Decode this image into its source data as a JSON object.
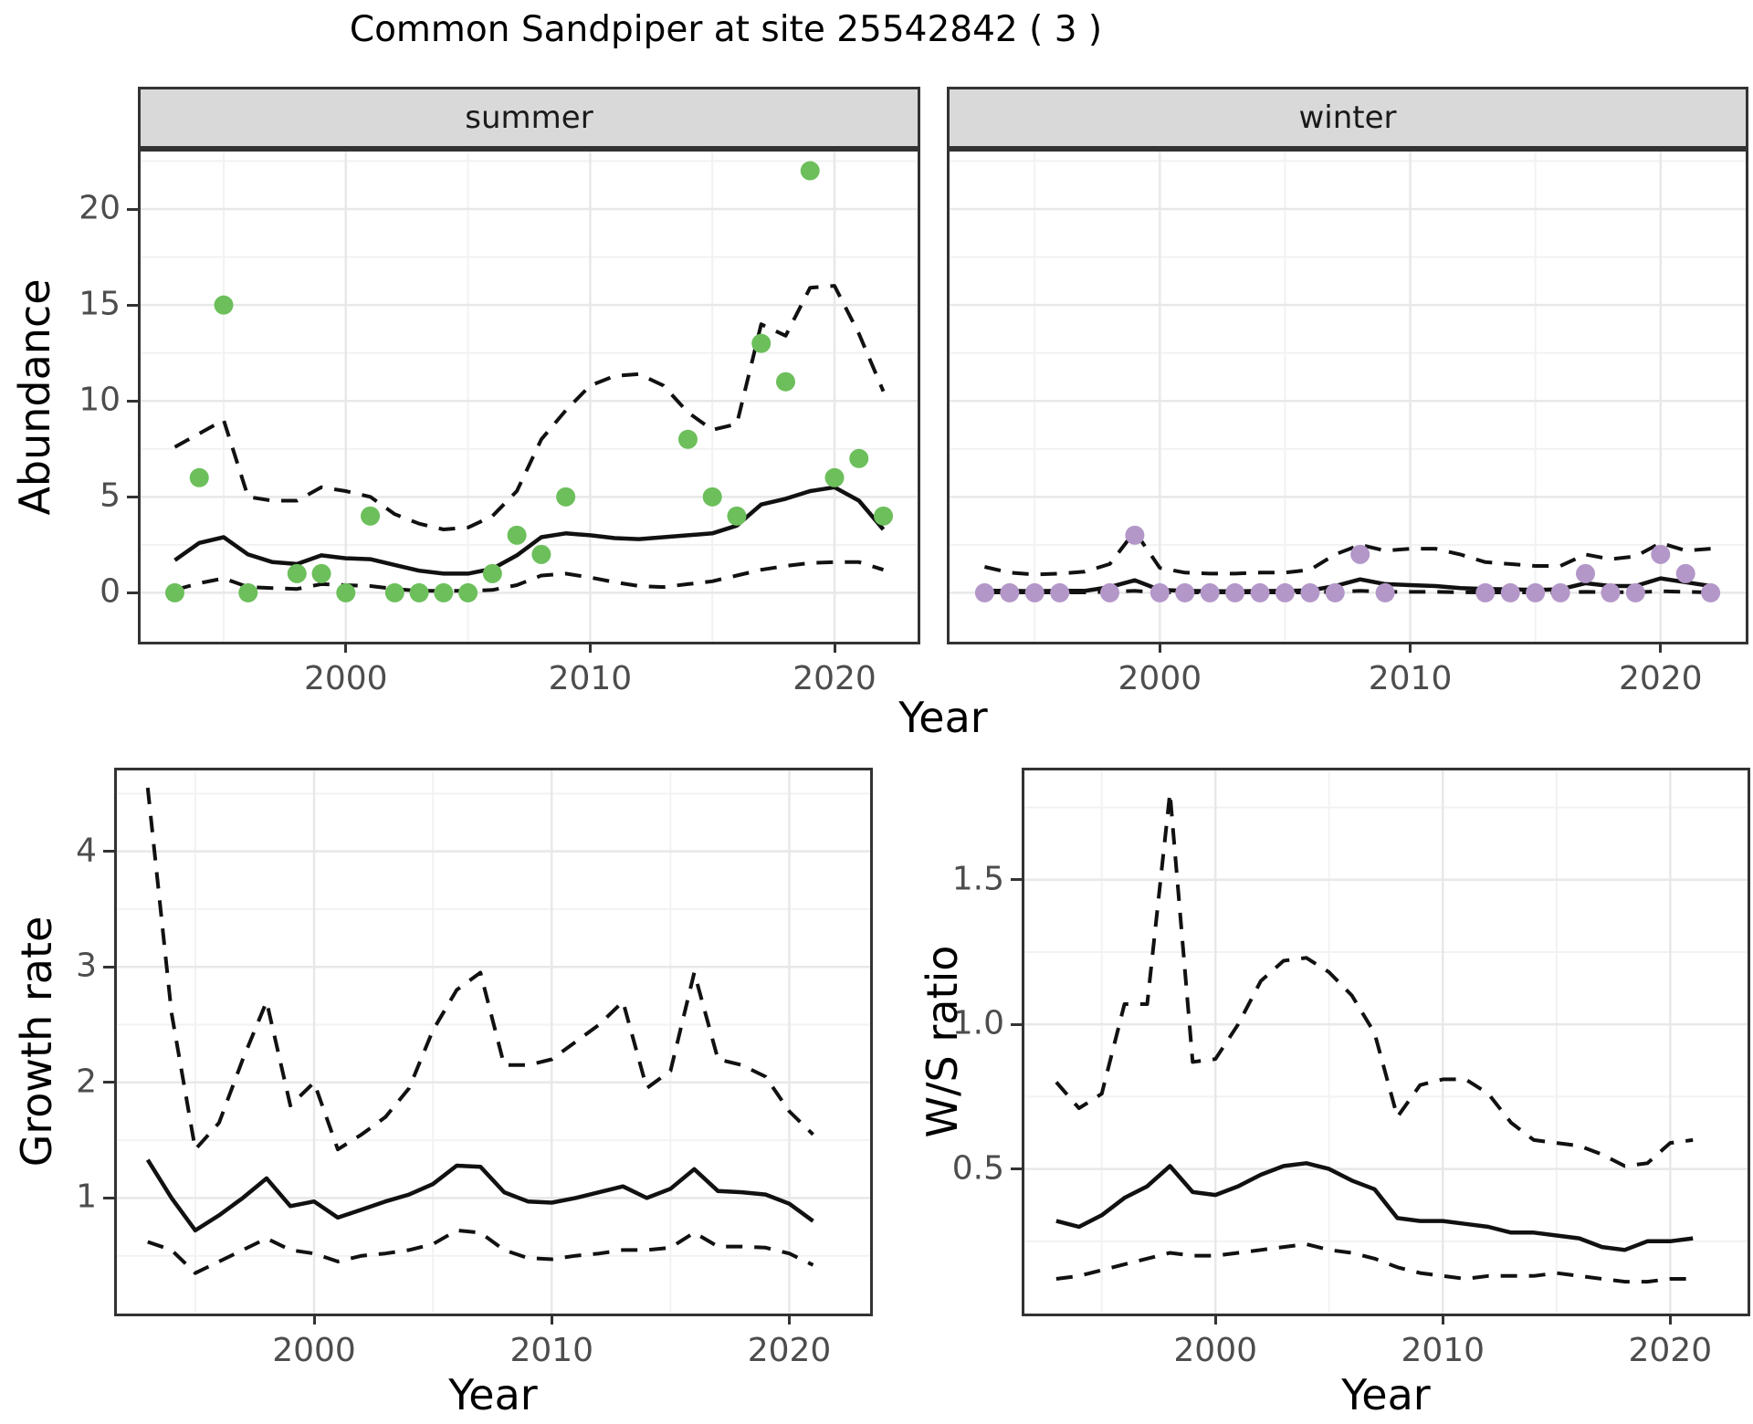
{
  "title": "Common Sandpiper at site 25542842 ( 3 )",
  "axis_titles": {
    "abundance": "Abundance",
    "year_top": "Year",
    "growth": "Growth rate",
    "year_growth": "Year",
    "ws": "W/S ratio",
    "year_ws": "Year"
  },
  "facets": {
    "summer": "summer",
    "winter": "winter"
  },
  "colors": {
    "summer_point": "#6CBF5B",
    "winter_point": "#B497C9",
    "line": "#111111",
    "strip_fill": "#D9D9D9",
    "border": "#333333",
    "grid_major": "#E8E8E8",
    "grid_minor": "#F2F2F2",
    "tick_text": "#4D4D4D"
  },
  "chart_data": {
    "abundance_summer": {
      "type": "scatter",
      "facet": "summer",
      "xlabel": "Year",
      "ylabel": "Abundance",
      "xlim": [
        1991.6,
        2023.4
      ],
      "ylim": [
        -2.55,
        23.0
      ],
      "x_ticks": [
        2000,
        2010,
        2020
      ],
      "x_tick_labels": [
        "2000",
        "2010",
        "2020"
      ],
      "x_minor": [
        1995,
        2005,
        2015
      ],
      "y_ticks": [
        0,
        5,
        10,
        15,
        20
      ],
      "y_tick_labels": [
        "0",
        "5",
        "10",
        "15",
        "20"
      ],
      "y_minor": [
        2.5,
        7.5,
        12.5,
        17.5,
        22.5
      ],
      "show_y_tick_labels": true,
      "point_color": "summer_point",
      "years": [
        1993,
        1994,
        1995,
        1996,
        1997,
        1998,
        1999,
        2000,
        2001,
        2002,
        2003,
        2004,
        2005,
        2006,
        2007,
        2008,
        2009,
        2010,
        2011,
        2012,
        2013,
        2014,
        2015,
        2016,
        2017,
        2018,
        2019,
        2020,
        2021,
        2022
      ],
      "median": [
        1.7,
        2.6,
        2.9,
        2.0,
        1.6,
        1.5,
        1.95,
        1.8,
        1.75,
        1.45,
        1.15,
        1.0,
        1.0,
        1.25,
        1.95,
        2.9,
        3.1,
        3.0,
        2.85,
        2.8,
        2.9,
        3.0,
        3.1,
        3.5,
        4.6,
        4.9,
        5.3,
        5.5,
        4.8,
        3.3
      ],
      "upper": [
        7.6,
        8.3,
        9.0,
        5.0,
        4.8,
        4.8,
        5.5,
        5.3,
        5.0,
        4.1,
        3.6,
        3.3,
        3.4,
        4.0,
        5.3,
        8.0,
        9.5,
        10.8,
        11.3,
        11.4,
        10.8,
        9.4,
        8.5,
        8.8,
        14.0,
        13.4,
        15.9,
        16.0,
        13.5,
        10.5
      ],
      "lower": [
        0.15,
        0.5,
        0.75,
        0.3,
        0.25,
        0.2,
        0.45,
        0.4,
        0.35,
        0.2,
        0.1,
        0.1,
        0.1,
        0.15,
        0.4,
        0.9,
        1.0,
        0.8,
        0.55,
        0.35,
        0.3,
        0.45,
        0.6,
        0.9,
        1.2,
        1.4,
        1.55,
        1.6,
        1.6,
        1.2
      ],
      "points": [
        [
          1993,
          0
        ],
        [
          1994,
          6
        ],
        [
          1995,
          15
        ],
        [
          1996,
          0
        ],
        [
          1998,
          1
        ],
        [
          1999,
          1
        ],
        [
          2000,
          0
        ],
        [
          2001,
          4
        ],
        [
          2002,
          0
        ],
        [
          2003,
          0
        ],
        [
          2004,
          0
        ],
        [
          2005,
          0
        ],
        [
          2006,
          1
        ],
        [
          2007,
          3
        ],
        [
          2008,
          2
        ],
        [
          2009,
          5
        ],
        [
          2014,
          8
        ],
        [
          2015,
          5
        ],
        [
          2016,
          4
        ],
        [
          2017,
          13
        ],
        [
          2018,
          11
        ],
        [
          2019,
          22
        ],
        [
          2020,
          6
        ],
        [
          2021,
          7
        ],
        [
          2022,
          4
        ]
      ]
    },
    "abundance_winter": {
      "type": "scatter",
      "facet": "winter",
      "xlabel": "Year",
      "ylabel": "Abundance",
      "xlim": [
        1991.6,
        2023.4
      ],
      "ylim": [
        -2.55,
        23.0
      ],
      "x_ticks": [
        2000,
        2010,
        2020
      ],
      "x_tick_labels": [
        "2000",
        "2010",
        "2020"
      ],
      "x_minor": [
        1995,
        2005,
        2015
      ],
      "y_ticks": [
        0,
        5,
        10,
        15,
        20
      ],
      "y_tick_labels": [
        "0",
        "5",
        "10",
        "15",
        "20"
      ],
      "y_minor": [
        2.5,
        7.5,
        12.5,
        17.5,
        22.5
      ],
      "show_y_tick_labels": false,
      "point_color": "winter_point",
      "years": [
        1993,
        1994,
        1995,
        1996,
        1997,
        1998,
        1999,
        2000,
        2001,
        2002,
        2003,
        2004,
        2005,
        2006,
        2007,
        2008,
        2009,
        2010,
        2011,
        2012,
        2013,
        2014,
        2015,
        2016,
        2017,
        2018,
        2019,
        2020,
        2021,
        2022
      ],
      "median": [
        0.1,
        0.1,
        0.08,
        0.1,
        0.1,
        0.3,
        0.65,
        0.15,
        0.1,
        0.08,
        0.08,
        0.09,
        0.1,
        0.12,
        0.35,
        0.7,
        0.45,
        0.4,
        0.35,
        0.25,
        0.2,
        0.18,
        0.15,
        0.18,
        0.5,
        0.35,
        0.35,
        0.75,
        0.55,
        0.35
      ],
      "upper": [
        1.35,
        1.05,
        0.95,
        1.0,
        1.1,
        1.5,
        3.2,
        1.3,
        1.05,
        1.0,
        1.0,
        1.05,
        1.05,
        1.2,
        2.0,
        2.5,
        2.2,
        2.3,
        2.3,
        2.0,
        1.6,
        1.5,
        1.4,
        1.4,
        2.0,
        1.75,
        1.9,
        2.6,
        2.2,
        2.3
      ],
      "lower": [
        0.02,
        0.02,
        0.02,
        0.02,
        0.02,
        0.05,
        0.1,
        0.02,
        0.02,
        0.02,
        0.02,
        0.02,
        0.02,
        0.02,
        0.05,
        0.1,
        0.05,
        0.05,
        0.05,
        0.03,
        0.02,
        0.02,
        0.02,
        0.02,
        0.05,
        0.03,
        0.03,
        0.08,
        0.05,
        0.02
      ],
      "points": [
        [
          1993,
          0
        ],
        [
          1994,
          0
        ],
        [
          1995,
          0
        ],
        [
          1996,
          0
        ],
        [
          1998,
          0
        ],
        [
          1999,
          3
        ],
        [
          2000,
          0
        ],
        [
          2001,
          0
        ],
        [
          2002,
          0
        ],
        [
          2003,
          0
        ],
        [
          2004,
          0
        ],
        [
          2005,
          0
        ],
        [
          2006,
          0
        ],
        [
          2007,
          0
        ],
        [
          2008,
          2
        ],
        [
          2009,
          0
        ],
        [
          2013,
          0
        ],
        [
          2014,
          0
        ],
        [
          2015,
          0
        ],
        [
          2016,
          0
        ],
        [
          2017,
          1
        ],
        [
          2018,
          0
        ],
        [
          2019,
          0
        ],
        [
          2020,
          2
        ],
        [
          2021,
          1
        ],
        [
          2022,
          0
        ]
      ]
    },
    "growth_rate": {
      "type": "line",
      "xlabel": "Year",
      "ylabel": "Growth rate",
      "xlim": [
        1991.7,
        2023.4
      ],
      "ylim": [
        0,
        4.7
      ],
      "x_ticks": [
        2000,
        2010,
        2020
      ],
      "x_tick_labels": [
        "2000",
        "2010",
        "2020"
      ],
      "x_minor": [
        1995,
        2005,
        2015
      ],
      "y_ticks": [
        1,
        2,
        3,
        4
      ],
      "y_tick_labels": [
        "1",
        "2",
        "3",
        "4"
      ],
      "y_minor": [
        0.5,
        1.5,
        2.5,
        3.5,
        4.5
      ],
      "show_y_tick_labels": true,
      "years": [
        1993,
        1994,
        1995,
        1996,
        1997,
        1998,
        1999,
        2000,
        2001,
        2002,
        2003,
        2004,
        2005,
        2006,
        2007,
        2008,
        2009,
        2010,
        2011,
        2012,
        2013,
        2014,
        2015,
        2016,
        2017,
        2018,
        2019,
        2020,
        2021
      ],
      "median": [
        1.33,
        1.0,
        0.72,
        0.85,
        1.0,
        1.17,
        0.93,
        0.97,
        0.83,
        0.9,
        0.97,
        1.03,
        1.12,
        1.28,
        1.27,
        1.05,
        0.97,
        0.96,
        1.0,
        1.05,
        1.1,
        1.0,
        1.08,
        1.25,
        1.06,
        1.05,
        1.03,
        0.95,
        0.8
      ],
      "upper": [
        4.55,
        2.6,
        1.42,
        1.65,
        2.2,
        2.7,
        1.8,
        2.0,
        1.42,
        1.55,
        1.7,
        1.95,
        2.45,
        2.8,
        2.95,
        2.15,
        2.15,
        2.2,
        2.35,
        2.5,
        2.7,
        1.95,
        2.1,
        2.95,
        2.2,
        2.15,
        2.05,
        1.75,
        1.55
      ],
      "lower": [
        0.62,
        0.55,
        0.35,
        0.45,
        0.55,
        0.65,
        0.55,
        0.52,
        0.45,
        0.5,
        0.52,
        0.55,
        0.6,
        0.72,
        0.7,
        0.55,
        0.48,
        0.47,
        0.5,
        0.52,
        0.55,
        0.55,
        0.57,
        0.7,
        0.58,
        0.58,
        0.57,
        0.52,
        0.42
      ],
      "points": []
    },
    "ws_ratio": {
      "type": "line",
      "xlabel": "Year",
      "ylabel": "W/S ratio",
      "xlim": [
        1991.6,
        2023.4
      ],
      "ylim": [
        0,
        1.878
      ],
      "x_ticks": [
        2000,
        2010,
        2020
      ],
      "x_tick_labels": [
        "2000",
        "2010",
        "2020"
      ],
      "x_minor": [
        1995,
        2005,
        2015
      ],
      "y_ticks": [
        0.5,
        1.0,
        1.5
      ],
      "y_tick_labels": [
        "0.5",
        "1.0",
        "1.5"
      ],
      "y_minor": [
        0.25,
        0.75,
        1.25,
        1.75
      ],
      "show_y_tick_labels": true,
      "years": [
        1993,
        1994,
        1995,
        1996,
        1997,
        1998,
        1999,
        2000,
        2001,
        2002,
        2003,
        2004,
        2005,
        2006,
        2007,
        2008,
        2009,
        2010,
        2011,
        2012,
        2013,
        2014,
        2015,
        2016,
        2017,
        2018,
        2019,
        2020,
        2021
      ],
      "median": [
        0.32,
        0.3,
        0.34,
        0.4,
        0.44,
        0.51,
        0.42,
        0.41,
        0.44,
        0.48,
        0.51,
        0.52,
        0.5,
        0.46,
        0.43,
        0.33,
        0.32,
        0.32,
        0.31,
        0.3,
        0.28,
        0.28,
        0.27,
        0.26,
        0.23,
        0.22,
        0.25,
        0.25,
        0.26
      ],
      "upper": [
        0.8,
        0.71,
        0.76,
        1.07,
        1.07,
        1.8,
        0.87,
        0.88,
        1.0,
        1.15,
        1.22,
        1.23,
        1.18,
        1.1,
        0.97,
        0.68,
        0.79,
        0.81,
        0.81,
        0.76,
        0.66,
        0.6,
        0.59,
        0.58,
        0.55,
        0.51,
        0.52,
        0.59,
        0.6
      ],
      "lower": [
        0.12,
        0.13,
        0.15,
        0.17,
        0.19,
        0.21,
        0.2,
        0.2,
        0.21,
        0.22,
        0.23,
        0.24,
        0.22,
        0.21,
        0.19,
        0.16,
        0.14,
        0.13,
        0.12,
        0.13,
        0.13,
        0.13,
        0.14,
        0.13,
        0.12,
        0.11,
        0.11,
        0.12,
        0.12
      ],
      "points": []
    }
  }
}
